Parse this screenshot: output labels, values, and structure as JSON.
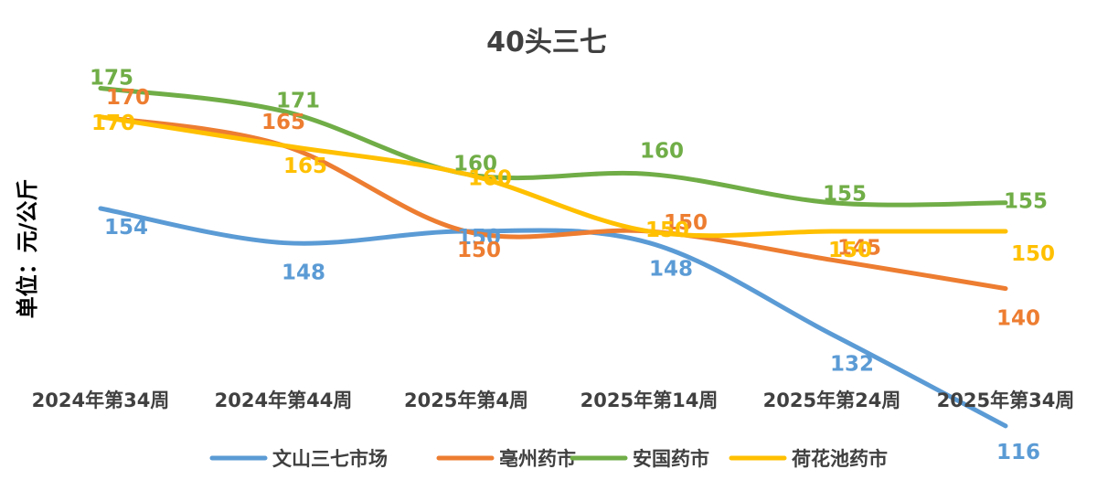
{
  "chart_data": {
    "type": "line",
    "title": "40头三七",
    "ylabel": "单位：元/公斤",
    "xlabel": "",
    "categories": [
      "2024年第34周",
      "2024年第44周",
      "2025年第4周",
      "2025年第14周",
      "2025年第24周",
      "2025年第34周"
    ],
    "series": [
      {
        "name": "文山三七市场",
        "color": "#5B9BD5",
        "values": [
          154,
          148,
          150,
          148,
          132,
          116
        ]
      },
      {
        "name": "亳州药市",
        "color": "#ED7D31",
        "values": [
          170,
          165,
          150,
          150,
          145,
          140
        ]
      },
      {
        "name": "安国药市",
        "color": "#70AD47",
        "values": [
          175,
          171,
          160,
          160,
          155,
          155
        ]
      },
      {
        "name": "荷花池药市",
        "color": "#FFC000",
        "values": [
          170,
          165,
          160,
          150,
          150,
          150
        ]
      }
    ],
    "grid": false,
    "legend": "bottom"
  }
}
